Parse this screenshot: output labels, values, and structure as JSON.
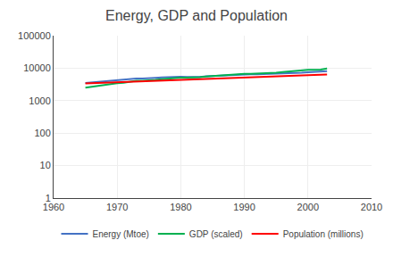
{
  "chart_data": {
    "type": "line",
    "title": "Energy, GDP and Population",
    "x": [
      1965,
      1966,
      1967,
      1968,
      1969,
      1970,
      1971,
      1972,
      1973,
      1974,
      1975,
      1976,
      1977,
      1978,
      1979,
      1980,
      1981,
      1982,
      1983,
      1984,
      1985,
      1986,
      1987,
      1988,
      1989,
      1990,
      1991,
      1992,
      1993,
      1994,
      1995,
      1996,
      1997,
      1998,
      1999,
      2000,
      2001,
      2002,
      2003
    ],
    "series": [
      {
        "name": "Energy (Mtoe)",
        "color": "#4472c4",
        "values": [
          3500,
          3650,
          3780,
          3950,
          4130,
          4300,
          4420,
          4600,
          4820,
          4800,
          4820,
          5060,
          5200,
          5350,
          5520,
          5480,
          5370,
          5300,
          5380,
          5600,
          5720,
          5800,
          5980,
          6200,
          6400,
          6440,
          6470,
          6490,
          6560,
          6680,
          6860,
          7080,
          7150,
          7150,
          7280,
          7520,
          7600,
          7750,
          8100
        ]
      },
      {
        "name": "GDP (scaled)",
        "color": "#00b050",
        "values": [
          2500,
          2680,
          2820,
          3020,
          3220,
          3420,
          3580,
          3800,
          4080,
          4120,
          4150,
          4380,
          4580,
          4800,
          5020,
          5080,
          5150,
          5150,
          5250,
          5550,
          5750,
          5900,
          6100,
          6400,
          6620,
          6720,
          6700,
          6800,
          6850,
          7050,
          7300,
          7600,
          7950,
          8100,
          8400,
          8900,
          8950,
          9100,
          9800
        ]
      },
      {
        "name": "Population (millions)",
        "color": "#ff0000",
        "values": [
          3380,
          3440,
          3510,
          3580,
          3650,
          3720,
          3790,
          3860,
          3940,
          4010,
          4080,
          4160,
          4240,
          4320,
          4400,
          4480,
          4540,
          4620,
          4700,
          4770,
          4850,
          4940,
          5020,
          5110,
          5190,
          5290,
          5370,
          5450,
          5540,
          5620,
          5720,
          5810,
          5900,
          5980,
          6060,
          6140,
          6210,
          6280,
          6360
        ]
      }
    ],
    "xlim": [
      1960,
      2010
    ],
    "ylim": [
      1,
      100000
    ],
    "xticks": [
      1960,
      1970,
      1980,
      1990,
      2000,
      2010
    ],
    "yticks": [
      1,
      10,
      100,
      1000,
      10000,
      100000
    ],
    "log": "y",
    "grid": true,
    "legend": "bottom"
  }
}
